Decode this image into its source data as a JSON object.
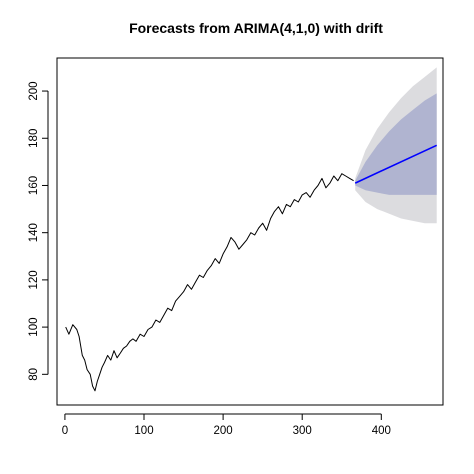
{
  "chart_data": {
    "type": "line",
    "title": "Forecasts from ARIMA(4,1,0) with drift",
    "xlabel": "",
    "ylabel": "",
    "xlim": [
      -10,
      478
    ],
    "ylim": [
      67,
      214
    ],
    "x_ticks": [
      0,
      100,
      200,
      300,
      400
    ],
    "y_ticks": [
      80,
      100,
      120,
      140,
      160,
      180,
      200
    ],
    "grid": false,
    "legend": "none",
    "series": [
      {
        "role": "observed",
        "color": "#000000",
        "x": [
          1,
          5,
          10,
          15,
          18,
          22,
          25,
          28,
          32,
          35,
          38,
          41,
          44,
          47,
          50,
          54,
          58,
          62,
          66,
          70,
          74,
          78,
          82,
          86,
          90,
          95,
          100,
          105,
          110,
          115,
          120,
          125,
          130,
          135,
          140,
          145,
          150,
          155,
          160,
          165,
          170,
          175,
          180,
          185,
          190,
          195,
          200,
          205,
          210,
          215,
          220,
          225,
          230,
          235,
          240,
          245,
          250,
          255,
          260,
          265,
          270,
          275,
          280,
          285,
          290,
          295,
          300,
          305,
          310,
          315,
          320,
          325,
          330,
          335,
          340,
          345,
          350,
          355,
          360,
          365
        ],
        "values": [
          100,
          97,
          101,
          99,
          96,
          88,
          86,
          82,
          80,
          75,
          73,
          77,
          80,
          83,
          85,
          88,
          86,
          90,
          87,
          89,
          91,
          92,
          94,
          95,
          94,
          97,
          96,
          99,
          100,
          103,
          102,
          105,
          108,
          107,
          111,
          113,
          115,
          118,
          116,
          119,
          122,
          121,
          124,
          126,
          129,
          127,
          131,
          134,
          138,
          136,
          133,
          135,
          137,
          140,
          139,
          142,
          144,
          141,
          146,
          149,
          151,
          148,
          152,
          151,
          154,
          153,
          156,
          157,
          155,
          158,
          160,
          163,
          159,
          161,
          164,
          162,
          165,
          164,
          163,
          162
        ]
      },
      {
        "role": "forecast",
        "color": "#0000ff",
        "x": [
          367,
          470
        ],
        "values": [
          161,
          177
        ]
      }
    ],
    "intervals": [
      {
        "level": "95%",
        "color": "#dcdcdf",
        "x": [
          367,
          380,
          395,
          410,
          425,
          440,
          455,
          470
        ],
        "upper": [
          163,
          175,
          184,
          191,
          197,
          202,
          206,
          210
        ],
        "lower": [
          158,
          153,
          150,
          148,
          146,
          145,
          144,
          144
        ]
      },
      {
        "level": "80%",
        "color": "#b0b4d0",
        "x": [
          367,
          380,
          395,
          410,
          425,
          440,
          455,
          470
        ],
        "upper": [
          162,
          170,
          177,
          183,
          188,
          192,
          196,
          199
        ],
        "lower": [
          160,
          158,
          157,
          156,
          156,
          156,
          156,
          156
        ]
      }
    ]
  }
}
